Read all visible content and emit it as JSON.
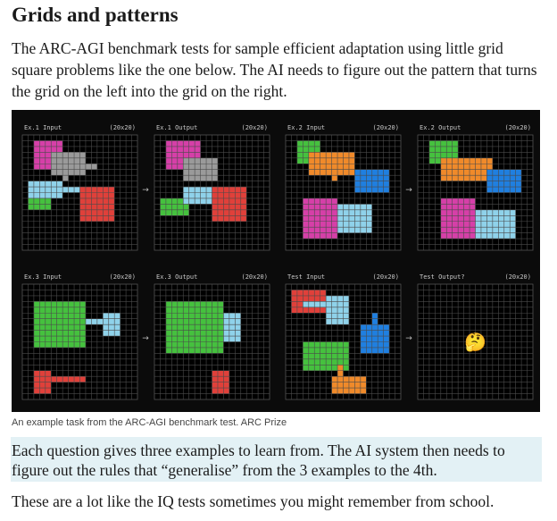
{
  "heading": "Grids and patterns",
  "intro": "The ARC-AGI benchmark tests for sample efficient adaptation using little grid square problems like the one below. The AI needs to figure out the pattern that turns the grid on the left into the grid on the right.",
  "figure": {
    "panels": [
      {
        "label": "Ex.1 Input",
        "size": "(20x20)"
      },
      {
        "label": "Ex.1 Output",
        "size": "(20x20)"
      },
      {
        "label": "Ex.2 Input",
        "size": "(20x20)"
      },
      {
        "label": "Ex.2 Output",
        "size": "(20x20)"
      },
      {
        "label": "Ex.3 Input",
        "size": "(20x20)"
      },
      {
        "label": "Ex.3 Output",
        "size": "(20x20)"
      },
      {
        "label": "Test Input",
        "size": "(20x20)"
      },
      {
        "label": "Test Output?",
        "size": "(20x20)"
      }
    ],
    "arrow_glyph": "→",
    "unknown_glyph": "🤔",
    "colors": {
      "magenta": "#d63fa8",
      "gray": "#9a9a9a",
      "light_blue": "#8fd2ea",
      "green": "#45c13e",
      "red": "#e0403a",
      "orange": "#f08a2a",
      "blue": "#1f7fe0"
    }
  },
  "caption": "An example task from the ARC-AGI benchmark test. ARC Prize",
  "highlight": "Each question gives three examples to learn from. The AI system then needs to figure out the rules that “generalise” from the 3 examples to the 4th.",
  "closing": "These are a lot like the IQ tests sometimes you might remember from school."
}
